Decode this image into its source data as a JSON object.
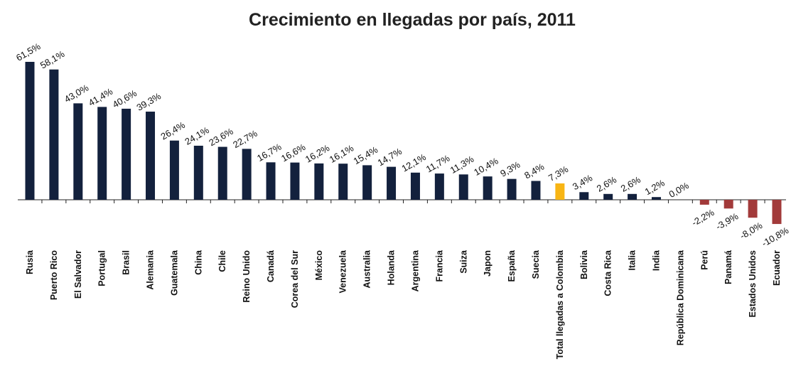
{
  "chart_data": {
    "type": "bar",
    "title": "Crecimiento en llegadas por país, 2011",
    "categories": [
      "Rusia",
      "Puerto Rico",
      "El Salvador",
      "Portugal",
      "Brasil",
      "Alemania",
      "Guatemala",
      "China",
      "Chile",
      "Reino Unido",
      "Canadá",
      "Corea del Sur",
      "México",
      "Venezuela",
      "Australia",
      "Holanda",
      "Argentina",
      "Francia",
      "Suiza",
      "Japon",
      "España",
      "Suecia",
      "Total llegadas a Colombia",
      "Bolivia",
      "Costa Rica",
      "Italia",
      "India",
      "República Dominicana",
      "Perú",
      "Panamá",
      "Estados Unidos",
      "Ecuador"
    ],
    "values": [
      61.5,
      58.1,
      43.0,
      41.4,
      40.6,
      39.3,
      26.4,
      24.1,
      23.6,
      22.7,
      16.7,
      16.6,
      16.2,
      16.1,
      15.4,
      14.7,
      12.1,
      11.7,
      11.3,
      10.4,
      9.3,
      8.4,
      7.3,
      3.4,
      2.6,
      2.6,
      1.2,
      0.0,
      -2.2,
      -3.9,
      -8.0,
      -10.8
    ],
    "value_labels": [
      "61,5%",
      "58,1%",
      "43,0%",
      "41,4%",
      "40,6%",
      "39,3%",
      "26,4%",
      "24,1%",
      "23,6%",
      "22,7%",
      "16,7%",
      "16,6%",
      "16,2%",
      "16,1%",
      "15,4%",
      "14,7%",
      "12,1%",
      "11,7%",
      "11,3%",
      "10,4%",
      "9,3%",
      "8,4%",
      "7,3%",
      "3,4%",
      "2,6%",
      "2,6%",
      "1,2%",
      "0,0%",
      "-2,2%",
      "-3,9%",
      "-8,0%",
      "-10,8%"
    ],
    "colors": [
      "#13213d",
      "#13213d",
      "#13213d",
      "#13213d",
      "#13213d",
      "#13213d",
      "#13213d",
      "#13213d",
      "#13213d",
      "#13213d",
      "#13213d",
      "#13213d",
      "#13213d",
      "#13213d",
      "#13213d",
      "#13213d",
      "#13213d",
      "#13213d",
      "#13213d",
      "#13213d",
      "#13213d",
      "#13213d",
      "#f8b514",
      "#13213d",
      "#13213d",
      "#13213d",
      "#13213d",
      "#13213d",
      "#a23a3a",
      "#a23a3a",
      "#a23a3a",
      "#a23a3a"
    ]
  }
}
